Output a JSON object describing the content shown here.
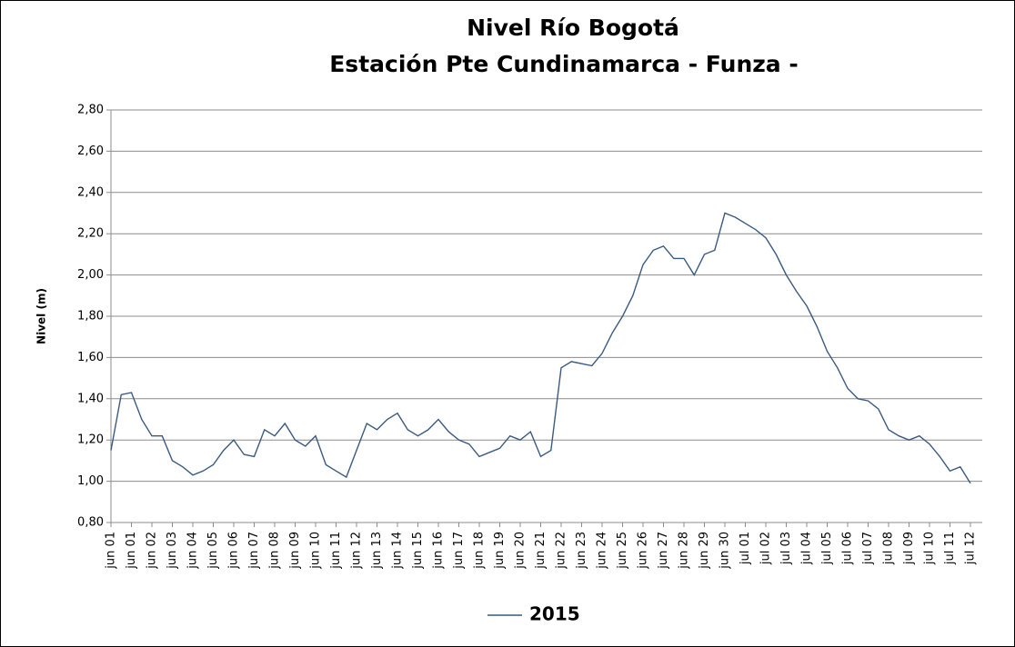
{
  "chart_data": {
    "type": "line",
    "title": [
      "Nivel Río Bogotá",
      "Estación Pte  Cundinamarca - Funza -"
    ],
    "y_label": "Nivel (m)",
    "categories": [
      "jun 01",
      null,
      "jun 01",
      null,
      "jun 02",
      null,
      "jun 03",
      null,
      "jun 04",
      null,
      "jun 05",
      null,
      "jun 06",
      null,
      "jun 07",
      null,
      "jun 08",
      null,
      "jun 09",
      null,
      "jun 10",
      null,
      "jun 11",
      null,
      "jun 12",
      null,
      "jun 13",
      null,
      "jun 14",
      null,
      "jun 15",
      null,
      "jun 16",
      null,
      "jun 17",
      null,
      "jun 18",
      null,
      "jun 19",
      null,
      "jun 20",
      null,
      "jun 21",
      null,
      "jun 22",
      null,
      "jun 23",
      null,
      "jun 24",
      null,
      "jun 25",
      null,
      "jun 26",
      null,
      "jun 27",
      null,
      "jun 28",
      null,
      "jun 29",
      null,
      "jun 30",
      null,
      "jul 01",
      null,
      "jul 02",
      null,
      "jul 03",
      null,
      "jul 04",
      null,
      "jul 05",
      null,
      "jul 06",
      null,
      "jul 07",
      null,
      "jul 08",
      null,
      "jul 09",
      null,
      "jul 10",
      null,
      "jul 11",
      null,
      "jul 12"
    ],
    "series": [
      {
        "name": "2015",
        "color": "#3b5a80",
        "values": [
          1.15,
          1.42,
          1.43,
          1.3,
          1.22,
          1.22,
          1.1,
          1.07,
          1.03,
          1.05,
          1.08,
          1.15,
          1.2,
          1.13,
          1.12,
          1.25,
          1.22,
          1.28,
          1.2,
          1.17,
          1.22,
          1.08,
          1.05,
          1.02,
          1.15,
          1.28,
          1.25,
          1.3,
          1.33,
          1.25,
          1.22,
          1.25,
          1.3,
          1.24,
          1.2,
          1.18,
          1.12,
          1.14,
          1.16,
          1.22,
          1.2,
          1.24,
          1.12,
          1.15,
          1.55,
          1.58,
          1.57,
          1.56,
          1.62,
          1.72,
          1.8,
          1.9,
          2.05,
          2.12,
          2.14,
          2.08,
          2.08,
          2.0,
          2.1,
          2.12,
          2.3,
          2.28,
          2.25,
          2.22,
          2.18,
          2.1,
          2.0,
          1.92,
          1.85,
          1.75,
          1.63,
          1.55,
          1.45,
          1.4,
          1.39,
          1.35,
          1.25,
          1.22,
          1.2,
          1.22,
          1.18,
          1.12,
          1.05,
          1.07,
          0.99
        ]
      }
    ],
    "ylim": [
      0.8,
      2.8
    ],
    "yticks": [
      {
        "value": 0.8,
        "label": "0,80"
      },
      {
        "value": 1.0,
        "label": "1,00"
      },
      {
        "value": 1.2,
        "label": "1,20"
      },
      {
        "value": 1.4,
        "label": "1,40"
      },
      {
        "value": 1.6,
        "label": "1,60"
      },
      {
        "value": 1.8,
        "label": "1,80"
      },
      {
        "value": 2.0,
        "label": "2,00"
      },
      {
        "value": 2.2,
        "label": "2,20"
      },
      {
        "value": 2.4,
        "label": "2,40"
      },
      {
        "value": 2.6,
        "label": "2,60"
      },
      {
        "value": 2.8,
        "label": "2,80"
      }
    ],
    "grid": true,
    "legend": "bottom"
  }
}
